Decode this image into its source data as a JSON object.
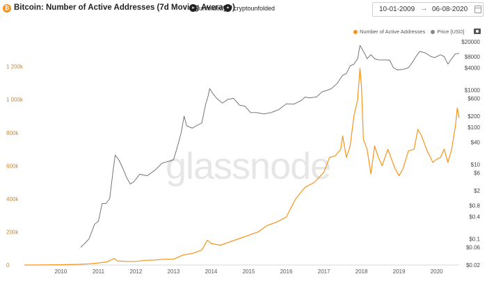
{
  "header": {
    "btc_symbol": "₿",
    "title": "Bitcoin: Number of Active Addresses (7d Moving Average)",
    "social": [
      {
        "icon": "telegram-icon",
        "label": "unfolded"
      },
      {
        "icon": "twitter-icon",
        "label": "cryptounfolded"
      }
    ],
    "date_from": "10-01-2009",
    "date_separator": "→",
    "date_to": "06-08-2020"
  },
  "watermark": "glassnode",
  "colors": {
    "addresses": "#f7931a",
    "price": "#666666",
    "left_axis_text": "#c28a3c",
    "right_axis_text": "#444444",
    "xaxis_text": "#555555"
  },
  "legend": {
    "addresses_label": "Number of Active Addresses",
    "price_label": "Price [USD]"
  },
  "chart_data": {
    "type": "line",
    "title": "Bitcoin: Number of Active Addresses (7d Moving Average)",
    "x_ticks": [
      "2010",
      "2011",
      "2012",
      "2013",
      "2014",
      "2015",
      "2016",
      "2017",
      "2018",
      "2019",
      "2020"
    ],
    "x_range": [
      2009.03,
      2020.6
    ],
    "left_axis": {
      "range": [
        0,
        1350000
      ],
      "ticks": [
        0,
        200000,
        400000,
        600000,
        800000,
        1000000,
        1200000
      ],
      "tick_labels": [
        "0",
        "200k",
        "400k",
        "600k",
        "800k",
        "1 000k",
        "1 200k"
      ]
    },
    "right_axis": {
      "scale": "log",
      "range": [
        0.02,
        20000
      ],
      "ticks": [
        0.02,
        0.06,
        0.1,
        0.4,
        0.8,
        2,
        6,
        10,
        40,
        100,
        200,
        600,
        1000,
        4000,
        8000,
        20000
      ],
      "tick_labels": [
        "$0.02",
        "$0.06",
        "$0.1",
        "$0.4",
        "$0.8",
        "$2",
        "$6",
        "$10",
        "$40",
        "$100",
        "$200",
        "$600",
        "$1000",
        "$4000",
        "$8000",
        "$20000"
      ]
    },
    "series": [
      {
        "name": "Number of Active Addresses",
        "axis": "left",
        "x": [
          2009.03,
          2009.5,
          2010.0,
          2010.5,
          2010.75,
          2011.0,
          2011.25,
          2011.42,
          2011.5,
          2011.75,
          2012.0,
          2012.25,
          2012.5,
          2012.75,
          2013.0,
          2013.25,
          2013.5,
          2013.75,
          2013.9,
          2014.0,
          2014.25,
          2014.5,
          2014.75,
          2015.0,
          2015.25,
          2015.5,
          2015.75,
          2016.0,
          2016.25,
          2016.5,
          2016.75,
          2017.0,
          2017.15,
          2017.3,
          2017.45,
          2017.5,
          2017.6,
          2017.7,
          2017.8,
          2017.9,
          2017.96,
          2018.0,
          2018.05,
          2018.15,
          2018.25,
          2018.35,
          2018.45,
          2018.55,
          2018.7,
          2018.9,
          2019.0,
          2019.1,
          2019.25,
          2019.4,
          2019.5,
          2019.6,
          2019.75,
          2019.9,
          2020.0,
          2020.1,
          2020.2,
          2020.3,
          2020.4,
          2020.5,
          2020.55,
          2020.6
        ],
        "y": [
          0,
          500,
          1500,
          4000,
          7000,
          12000,
          20000,
          40000,
          25000,
          22000,
          22000,
          28000,
          30000,
          35000,
          35000,
          60000,
          70000,
          90000,
          150000,
          130000,
          120000,
          140000,
          160000,
          180000,
          200000,
          240000,
          260000,
          290000,
          400000,
          470000,
          500000,
          560000,
          650000,
          660000,
          700000,
          780000,
          650000,
          720000,
          900000,
          1000000,
          1190000,
          1080000,
          760000,
          700000,
          550000,
          720000,
          650000,
          600000,
          700000,
          580000,
          540000,
          580000,
          690000,
          700000,
          820000,
          780000,
          690000,
          620000,
          640000,
          650000,
          700000,
          620000,
          700000,
          840000,
          950000,
          890000
        ]
      },
      {
        "name": "Price [USD]",
        "axis": "right",
        "x": [
          2010.53,
          2010.6,
          2010.75,
          2010.9,
          2011.0,
          2011.1,
          2011.2,
          2011.3,
          2011.4,
          2011.45,
          2011.55,
          2011.65,
          2011.75,
          2011.85,
          2011.95,
          2012.1,
          2012.3,
          2012.5,
          2012.7,
          2012.9,
          2013.0,
          2013.1,
          2013.2,
          2013.28,
          2013.35,
          2013.5,
          2013.6,
          2013.75,
          2013.85,
          2013.92,
          2013.96,
          2014.05,
          2014.15,
          2014.3,
          2014.45,
          2014.6,
          2014.75,
          2014.9,
          2015.05,
          2015.2,
          2015.4,
          2015.6,
          2015.8,
          2016.0,
          2016.2,
          2016.4,
          2016.5,
          2016.6,
          2016.8,
          2016.95,
          2017.1,
          2017.2,
          2017.35,
          2017.5,
          2017.6,
          2017.7,
          2017.8,
          2017.9,
          2017.96,
          2018.05,
          2018.1,
          2018.15,
          2018.25,
          2018.35,
          2018.45,
          2018.55,
          2018.65,
          2018.75,
          2018.85,
          2018.95,
          2019.1,
          2019.25,
          2019.35,
          2019.45,
          2019.55,
          2019.7,
          2019.85,
          2019.95,
          2020.1,
          2020.2,
          2020.3,
          2020.4,
          2020.5,
          2020.6
        ],
        "y": [
          0.06,
          0.07,
          0.1,
          0.25,
          0.3,
          0.9,
          0.9,
          1.2,
          8,
          18,
          13,
          8,
          4.5,
          3,
          3.5,
          5.5,
          5,
          7,
          11,
          12.5,
          13.5,
          30,
          70,
          200,
          110,
          95,
          110,
          130,
          400,
          700,
          1100,
          800,
          600,
          450,
          570,
          600,
          400,
          370,
          250,
          250,
          230,
          250,
          300,
          430,
          420,
          530,
          650,
          620,
          650,
          900,
          1000,
          1100,
          1500,
          2500,
          2800,
          4500,
          5000,
          7000,
          16000,
          11000,
          9000,
          7000,
          9000,
          7000,
          6500,
          6500,
          6500,
          6400,
          4000,
          3500,
          3600,
          4000,
          5500,
          8000,
          11000,
          10000,
          8000,
          7500,
          9000,
          8000,
          5000,
          7000,
          9500,
          9700
        ]
      }
    ]
  }
}
